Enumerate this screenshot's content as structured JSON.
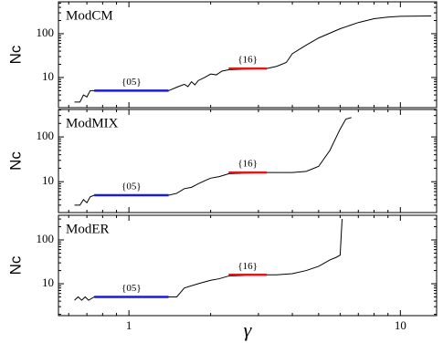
{
  "chart_data": [
    {
      "type": "line",
      "title": "ModCM",
      "ylabel": "Nc",
      "xscale": "log",
      "yscale": "log",
      "xlim": [
        0.55,
        13.6
      ],
      "ylim": [
        2.05,
        535
      ],
      "xticks": [
        1,
        10
      ],
      "yticks": [
        10,
        100
      ],
      "series": [
        {
          "color": "#000000",
          "x": [
            0.63,
            0.66,
            0.68,
            0.7,
            0.72,
            0.745,
            1.4,
            1.5,
            1.6,
            1.65,
            1.7,
            1.75,
            1.8,
            1.9,
            2.0,
            2.1,
            2.2,
            2.33,
            3.22,
            3.5,
            3.8,
            4.0,
            4.5,
            5.0,
            6.0,
            7.0,
            8.0,
            9.0,
            10.0,
            13.0
          ],
          "values": [
            2.75,
            2.75,
            4,
            3.6,
            5,
            5,
            5,
            6,
            7,
            6.2,
            8,
            6.8,
            8.5,
            10,
            12,
            11.5,
            14,
            15,
            16,
            18,
            22,
            35,
            55,
            80,
            130,
            180,
            220,
            240,
            250,
            255
          ]
        },
        {
          "color": "#1a1adb",
          "x": [
            0.745,
            1.4
          ],
          "values": [
            5,
            5
          ],
          "label": "{05}"
        },
        {
          "color": "#e01a1a",
          "x": [
            2.33,
            3.22
          ],
          "values": [
            16,
            16
          ],
          "label": "{16}"
        }
      ]
    },
    {
      "type": "line",
      "title": "ModMIX",
      "ylabel": "Nc",
      "xscale": "log",
      "yscale": "log",
      "xlim": [
        0.55,
        13.6
      ],
      "ylim": [
        2.05,
        410
      ],
      "xticks": [
        1,
        10
      ],
      "yticks": [
        10,
        100
      ],
      "series": [
        {
          "color": "#000000",
          "x": [
            0.63,
            0.66,
            0.68,
            0.7,
            0.72,
            0.745,
            1.4,
            1.5,
            1.6,
            1.7,
            1.8,
            1.9,
            2.0,
            2.15,
            2.33,
            3.22,
            3.5,
            4.0,
            4.5,
            5.0,
            5.5,
            6.0,
            6.3,
            6.6
          ],
          "values": [
            3,
            3,
            4,
            3.4,
            4.6,
            5,
            5,
            5.5,
            7,
            7.5,
            9,
            10.5,
            12,
            13,
            15,
            16,
            16,
            16,
            17,
            22,
            50,
            150,
            250,
            270
          ]
        },
        {
          "color": "#1a1adb",
          "x": [
            0.745,
            1.4
          ],
          "values": [
            5,
            5
          ],
          "label": "{05}"
        },
        {
          "color": "#e01a1a",
          "x": [
            2.33,
            3.22
          ],
          "values": [
            16,
            16
          ],
          "label": "{16}"
        }
      ]
    },
    {
      "type": "line",
      "title": "ModER",
      "ylabel": "Nc",
      "xscale": "log",
      "yscale": "log",
      "xlabel": "γ",
      "xlim": [
        0.55,
        13.6
      ],
      "ylim": [
        1.87,
        365
      ],
      "xticks": [
        1,
        10
      ],
      "yticks": [
        10,
        100
      ],
      "series": [
        {
          "color": "#000000",
          "x": [
            0.63,
            0.65,
            0.67,
            0.69,
            0.71,
            0.745,
            1.4,
            1.5,
            1.6,
            1.8,
            2.0,
            2.15,
            2.33,
            3.22,
            3.5,
            4.0,
            4.5,
            5.0,
            5.5,
            5.8,
            6.0,
            6.1
          ],
          "values": [
            4.2,
            5,
            4.2,
            5,
            4.2,
            5,
            5,
            5,
            8,
            10,
            12,
            13,
            15,
            16,
            16,
            17,
            20,
            25,
            35,
            40,
            45,
            300
          ]
        },
        {
          "color": "#1a1adb",
          "x": [
            0.745,
            1.4
          ],
          "values": [
            5,
            5
          ],
          "label": "{05}"
        },
        {
          "color": "#e01a1a",
          "x": [
            2.33,
            3.22
          ],
          "values": [
            16,
            16
          ],
          "label": "{16}"
        }
      ]
    }
  ]
}
